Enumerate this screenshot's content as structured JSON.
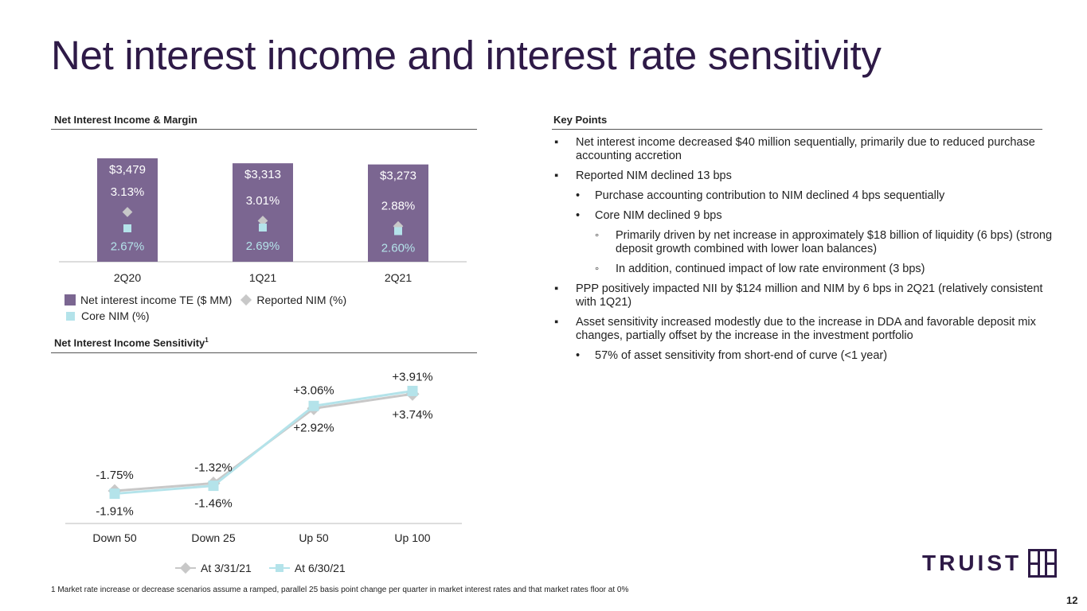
{
  "page": {
    "title": "Net interest income and interest rate sensitivity",
    "footnote": "1 Market rate increase or decrease scenarios assume a ramped, parallel 25 basis point change per quarter in market interest rates and that market rates floor at 0%",
    "page_number": "12",
    "logo_text": "TRUIST"
  },
  "sections": {
    "nim_head": "Net Interest Income & Margin",
    "sens_head": "Net Interest Income Sensitivity",
    "sens_sup": "1",
    "kp_head": "Key Points"
  },
  "key_points": [
    {
      "level": 1,
      "bullet": "▪",
      "text": "Net interest income decreased $40 million sequentially, primarily due to reduced purchase accounting accretion"
    },
    {
      "level": 1,
      "bullet": "▪",
      "text": "Reported NIM declined 13 bps"
    },
    {
      "level": 2,
      "bullet": "•",
      "text": "Purchase accounting contribution to NIM declined 4 bps sequentially"
    },
    {
      "level": 2,
      "bullet": "•",
      "text": "Core NIM declined 9 bps"
    },
    {
      "level": 3,
      "bullet": "◦",
      "text": "Primarily driven by net increase in approximately $18 billion of liquidity (6 bps) (strong deposit growth combined with lower loan balances)"
    },
    {
      "level": 3,
      "bullet": "◦",
      "text": "In addition, continued impact of low rate environment (3 bps)"
    },
    {
      "level": 1,
      "bullet": "▪",
      "text": "PPP positively impacted NII by $124 million and NIM by 6 bps in 2Q21 (relatively consistent with 1Q21)"
    },
    {
      "level": 1,
      "bullet": "▪",
      "text": "Asset sensitivity increased modestly due to the increase in DDA and favorable deposit mix changes, partially offset by the increase in the investment portfolio"
    },
    {
      "level": 2,
      "bullet": "•",
      "text": "57% of asset sensitivity from short-end of curve (<1 year)"
    }
  ],
  "chart_data": [
    {
      "type": "bar",
      "title": "Net Interest Income & Margin",
      "categories": [
        "2Q20",
        "1Q21",
        "2Q21"
      ],
      "series": [
        {
          "name": "Net interest income TE ($ MM)",
          "values": [
            3479,
            3313,
            3273
          ],
          "labels": [
            "$3,479",
            "$3,313",
            "$3,273"
          ],
          "color": "#7b6691"
        },
        {
          "name": "Reported NIM (%)",
          "values": [
            3.13,
            3.01,
            2.88
          ],
          "labels": [
            "3.13%",
            "3.01%",
            "2.88%"
          ],
          "color": "#c8c8c8",
          "marker": "diamond"
        },
        {
          "name": "Core NIM (%)",
          "values": [
            2.67,
            2.69,
            2.6
          ],
          "labels": [
            "2.67%",
            "2.69%",
            "2.60%"
          ],
          "color": "#b4e3ea",
          "marker": "square"
        }
      ],
      "legend": "bottom-left"
    },
    {
      "type": "line",
      "title": "Net Interest Income Sensitivity",
      "categories": [
        "Down 50",
        "Down 25",
        "Up 50",
        "Up 100"
      ],
      "series": [
        {
          "name": "At 3/31/21",
          "values": [
            -1.75,
            -1.32,
            2.92,
            3.74
          ],
          "labels": [
            "-1.75%",
            "-1.32%",
            "+2.92%",
            "+3.74%"
          ],
          "color": "#c8c8c8",
          "marker": "diamond"
        },
        {
          "name": "At 6/30/21",
          "values": [
            -1.91,
            -1.46,
            3.06,
            3.91
          ],
          "labels": [
            "-1.91%",
            "-1.46%",
            "+3.06%",
            "+3.91%"
          ],
          "color": "#b4e3ea",
          "marker": "square"
        }
      ],
      "legend": "bottom"
    }
  ]
}
